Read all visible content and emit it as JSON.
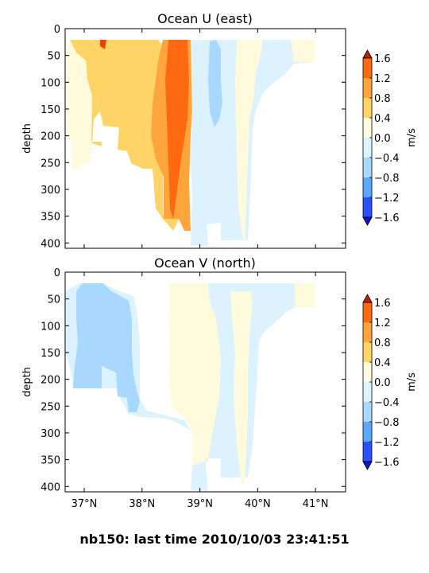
{
  "footer": "nb150: last time 2010/10/03 23:41:51",
  "colorbar": {
    "label": "m/s",
    "ticks": [
      "1.6",
      "1.2",
      "0.8",
      "0.4",
      "0.0",
      "−0.4",
      "−0.8",
      "−1.2",
      "−1.6"
    ],
    "colors_top_to_bottom": [
      "#e8420e",
      "#ff6a10",
      "#ffa53c",
      "#ffd466",
      "#fffadc",
      "#dcf2ff",
      "#a8d8ff",
      "#5ca7ff",
      "#2a50ff"
    ],
    "extend_top": "#c0200a",
    "extend_bottom": "#1414c8"
  },
  "chart_data": [
    {
      "type": "heatmap",
      "title": "Ocean U (east)",
      "ylabel": "depth",
      "xlabel": "",
      "ylim": [
        410,
        0
      ],
      "xlim": [
        36.67,
        41.52
      ],
      "y_ticks": [
        0,
        50,
        100,
        150,
        200,
        250,
        300,
        350,
        400
      ],
      "x_ticks": [],
      "value_units": "m/s",
      "regions": [
        {
          "value_range": [
            0.0,
            0.4
          ],
          "lat_range": [
            36.67,
            37.55
          ],
          "depth_range": [
            25,
            215
          ]
        },
        {
          "value_range": [
            0.4,
            0.8
          ],
          "lat_range": [
            37.0,
            38.55
          ],
          "depth_range": [
            25,
            210
          ]
        },
        {
          "value_range": [
            0.8,
            1.2
          ],
          "lat_range": [
            38.15,
            38.85
          ],
          "depth_range": [
            25,
            275
          ]
        },
        {
          "value_range": [
            1.2,
            1.6
          ],
          "lat_range": [
            38.4,
            38.8
          ],
          "depth_range": [
            25,
            275
          ]
        },
        {
          "value_range": [
            -0.4,
            0.0
          ],
          "lat_range": [
            38.85,
            40.0
          ],
          "depth_range": [
            25,
            410
          ]
        },
        {
          "value_range": [
            -0.8,
            -0.4
          ],
          "lat_range": [
            39.15,
            39.4
          ],
          "depth_range": [
            40,
            165
          ]
        },
        {
          "value_range": [
            0.0,
            0.4
          ],
          "lat_range": [
            39.65,
            40.05
          ],
          "depth_range": [
            25,
            395
          ]
        },
        {
          "value_range": [
            -0.4,
            0.0
          ],
          "lat_range": [
            40.05,
            40.95
          ],
          "depth_range": [
            25,
            110
          ]
        }
      ]
    },
    {
      "type": "heatmap",
      "title": "Ocean V (north)",
      "ylabel": "depth",
      "xlabel": "",
      "ylim": [
        410,
        0
      ],
      "xlim": [
        36.67,
        41.52
      ],
      "y_ticks": [
        0,
        50,
        100,
        150,
        200,
        250,
        300,
        350,
        400
      ],
      "x_ticks": [
        "37°N",
        "38°N",
        "39°N",
        "40°N",
        "41°N"
      ],
      "x_tick_values": [
        37,
        38,
        39,
        40,
        41
      ],
      "value_units": "m/s",
      "regions": [
        {
          "value_range": [
            -0.4,
            0.0
          ],
          "lat_range": [
            36.67,
            38.55
          ],
          "depth_range": [
            25,
            265
          ]
        },
        {
          "value_range": [
            -0.8,
            -0.4
          ],
          "lat_range": [
            36.8,
            37.95
          ],
          "depth_range": [
            25,
            260
          ]
        },
        {
          "value_range": [
            0.0,
            0.4
          ],
          "lat_range": [
            38.5,
            39.75
          ],
          "depth_range": [
            25,
            365
          ]
        },
        {
          "value_range": [
            -0.4,
            0.0
          ],
          "lat_range": [
            38.9,
            40.0
          ],
          "depth_range": [
            25,
            410
          ]
        },
        {
          "value_range": [
            0.0,
            0.4
          ],
          "lat_range": [
            39.45,
            39.85
          ],
          "depth_range": [
            25,
            395
          ]
        },
        {
          "value_range": [
            -0.4,
            0.0
          ],
          "lat_range": [
            39.85,
            40.95
          ],
          "depth_range": [
            25,
            100
          ]
        }
      ]
    }
  ]
}
